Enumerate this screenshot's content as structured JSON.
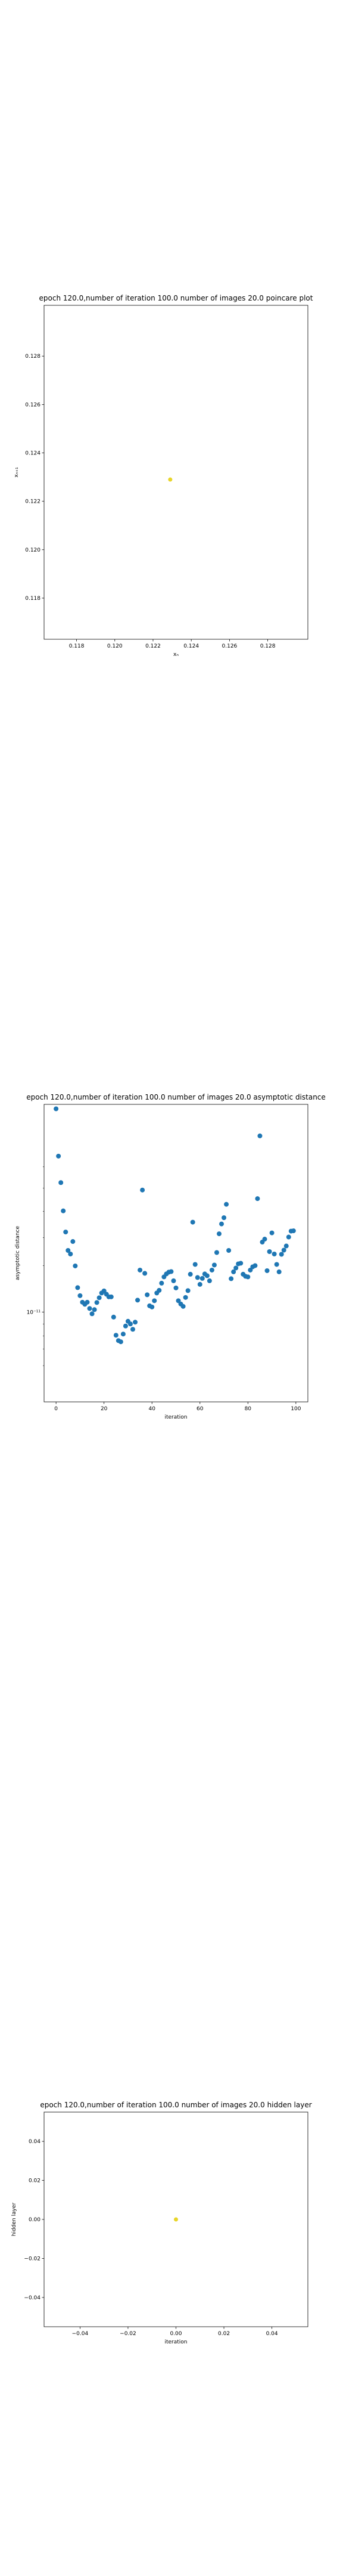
{
  "chart_data": [
    {
      "type": "scatter",
      "title": "epoch 120.0,number of iteration 100.0 number of images 20.0 poincare plot",
      "xlabel": "xₙ",
      "ylabel": "xₙ₊₁",
      "xlim": [
        0.1163,
        0.1301
      ],
      "ylim": [
        0.1163,
        0.1301
      ],
      "xticks": [
        "0.118",
        "0.120",
        "0.122",
        "0.124",
        "0.126",
        "0.128"
      ],
      "yticks": [
        "0.118",
        "0.120",
        "0.122",
        "0.124",
        "0.126",
        "0.128"
      ],
      "x": [
        0.1229
      ],
      "y": [
        0.1229
      ],
      "color": "#e8d52a"
    },
    {
      "type": "scatter",
      "title": "epoch 120.0,number of iteration 100.0  number of images 20.0 asymptotic distance",
      "xlabel": "iteration",
      "ylabel": "asymptotic distance",
      "yscale": "log",
      "xlim": [
        -5,
        105
      ],
      "xticks": [
        "0",
        "20",
        "40",
        "60",
        "80",
        "100"
      ],
      "yticks": [
        "10⁻¹¹"
      ],
      "color": "#1f77b4",
      "x": [
        0,
        1,
        2,
        3,
        4,
        5,
        6,
        7,
        8,
        9,
        10,
        11,
        12,
        13,
        14,
        15,
        16,
        17,
        18,
        19,
        20,
        21,
        22,
        23,
        24,
        25,
        26,
        27,
        28,
        29,
        30,
        31,
        32,
        33,
        34,
        35,
        36,
        37,
        38,
        39,
        40,
        41,
        42,
        43,
        44,
        45,
        46,
        47,
        48,
        49,
        50,
        51,
        52,
        53,
        54,
        55,
        56,
        57,
        58,
        59,
        60,
        61,
        62,
        63,
        64,
        65,
        66,
        67,
        68,
        69,
        70,
        71,
        72,
        73,
        74,
        75,
        76,
        77,
        78,
        79,
        80,
        81,
        82,
        83,
        84,
        85,
        86,
        87,
        88,
        89,
        90,
        91,
        92,
        93,
        94,
        95,
        96,
        97,
        98,
        99
      ],
      "y": [
        0.985,
        0.826,
        0.737,
        0.642,
        0.571,
        0.509,
        0.497,
        0.539,
        0.457,
        0.384,
        0.357,
        0.335,
        0.328,
        0.335,
        0.314,
        0.296,
        0.31,
        0.334,
        0.35,
        0.366,
        0.373,
        0.362,
        0.353,
        0.353,
        0.285,
        0.224,
        0.206,
        0.202,
        0.228,
        0.255,
        0.271,
        0.262,
        0.244,
        0.268,
        0.342,
        0.443,
        0.712,
        0.432,
        0.36,
        0.323,
        0.319,
        0.34,
        0.366,
        0.375,
        0.399,
        0.42,
        0.43,
        0.436,
        0.438,
        0.407,
        0.383,
        0.34,
        0.329,
        0.321,
        0.351,
        0.374,
        0.429,
        0.604,
        0.462,
        0.418,
        0.395,
        0.415,
        0.43,
        0.424,
        0.407,
        0.443,
        0.46,
        0.502,
        0.565,
        0.598,
        0.619,
        0.664,
        0.509,
        0.414,
        0.437,
        0.45,
        0.464,
        0.466,
        0.429,
        0.422,
        0.42,
        0.443,
        0.454,
        0.458,
        0.683,
        0.894,
        0.537,
        0.547,
        0.441,
        0.505,
        0.568,
        0.497,
        0.462,
        0.437,
        0.496,
        0.51,
        0.524,
        0.554,
        0.574,
        0.575
      ]
    },
    {
      "type": "scatter",
      "title": "epoch 120.0,number of iteration 100.0  number of images 20.0 hidden layer",
      "xlabel": "iteration",
      "ylabel": "hidden layer",
      "xlim": [
        -0.055,
        0.055
      ],
      "ylim": [
        -0.055,
        0.055
      ],
      "xticks": [
        "−0.04",
        "−0.02",
        "0.00",
        "0.02",
        "0.04"
      ],
      "yticks": [
        "−0.04",
        "−0.02",
        "0.00",
        "0.02",
        "0.04"
      ],
      "x": [
        0.0
      ],
      "y": [
        0.0
      ],
      "color": "#e8d52a"
    }
  ]
}
